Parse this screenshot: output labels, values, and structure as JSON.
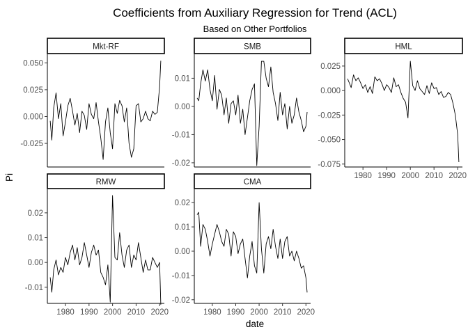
{
  "chart_data": {
    "type": "line",
    "title": "Coefficients from Auxiliary Regression for Trend (ACL)",
    "subtitle": "Based on Other Portfolios",
    "xlabel": "date",
    "ylabel": "Pi",
    "xlim": [
      1972.3,
      2022.0
    ],
    "x_ticks": [
      1980,
      1990,
      2000,
      2010,
      2020
    ],
    "legend": "none",
    "grid": false,
    "panels": [
      {
        "name": "Mkt-RF",
        "ylim": [
          -0.047,
          0.058
        ],
        "y_ticks": [
          0.05,
          0.025,
          0.0,
          -0.025
        ],
        "y_tick_labels": [
          "0.050",
          "0.025",
          "0.000",
          "-0.025"
        ],
        "x": [
          1973.5,
          1974.2,
          1975,
          1976,
          1977,
          1978,
          1979,
          1980,
          1981,
          1982,
          1983,
          1984,
          1985,
          1986,
          1987,
          1988,
          1989,
          1990,
          1991,
          1992,
          1993,
          1994,
          1995,
          1996,
          1997,
          1998,
          1999,
          2000,
          2001,
          2002,
          2003,
          2004,
          2005,
          2006,
          2007,
          2008,
          2009,
          2010,
          2011,
          2012,
          2013,
          2014,
          2015,
          2016,
          2017,
          2018,
          2019,
          2020,
          2020.5
        ],
        "values": [
          -0.004,
          -0.022,
          0.008,
          0.022,
          -0.002,
          0.012,
          -0.018,
          -0.005,
          0.01,
          0.017,
          0.005,
          -0.008,
          0.003,
          -0.015,
          0.005,
          0.001,
          -0.012,
          0.012,
          0.002,
          -0.002,
          0.013,
          -0.005,
          -0.02,
          -0.04,
          -0.005,
          0.008,
          -0.015,
          -0.03,
          0.012,
          0.003,
          0.015,
          0.01,
          -0.005,
          0.008,
          -0.025,
          -0.038,
          -0.03,
          0.01,
          0.012,
          -0.005,
          -0.002,
          0.005,
          -0.002,
          -0.004,
          0.005,
          0.002,
          0.004,
          0.028,
          0.052
        ]
      },
      {
        "name": "SMB",
        "ylim": [
          -0.0215,
          0.0185
        ],
        "y_ticks": [
          0.01,
          0.0,
          -0.01,
          -0.02
        ],
        "y_tick_labels": [
          "0.01",
          "0.00",
          "-0.01",
          "-0.02"
        ],
        "x": [
          1973.5,
          1974.2,
          1975,
          1976,
          1977,
          1978,
          1979,
          1980,
          1981,
          1982,
          1983,
          1984,
          1985,
          1986,
          1987,
          1988,
          1989,
          1990,
          1991,
          1992,
          1993,
          1994,
          1995,
          1996,
          1997,
          1998,
          1999,
          2000,
          2001,
          2002,
          2003,
          2004,
          2005,
          2006,
          2007,
          2008,
          2009,
          2010,
          2011,
          2012,
          2013,
          2014,
          2015,
          2016,
          2017,
          2018,
          2019,
          2020,
          2020.5
        ],
        "values": [
          0.003,
          0.002,
          0.008,
          0.013,
          0.009,
          0.013,
          0.006,
          0.002,
          0.011,
          -0.001,
          0.006,
          0.004,
          -0.003,
          0.003,
          -0.006,
          0.001,
          0.002,
          -0.003,
          0.004,
          -0.006,
          -0.001,
          -0.01,
          -0.004,
          0.002,
          0.006,
          0.008,
          -0.021,
          -0.007,
          0.016,
          0.016,
          0.01,
          0.007,
          0.014,
          0.005,
          0.001,
          -0.005,
          0.005,
          -0.003,
          0.001,
          -0.008,
          0.0,
          -0.006,
          -0.003,
          0.003,
          -0.002,
          -0.005,
          -0.009,
          -0.007,
          -0.002
        ]
      },
      {
        "name": "HML",
        "ylim": [
          -0.078,
          0.037
        ],
        "y_ticks": [
          0.025,
          0.0,
          -0.025,
          -0.05,
          -0.075
        ],
        "y_tick_labels": [
          "0.025",
          "0.000",
          "-0.025",
          "-0.050",
          "-0.075"
        ],
        "x": [
          1973.5,
          1974.2,
          1975,
          1976,
          1977,
          1978,
          1979,
          1980,
          1981,
          1982,
          1983,
          1984,
          1985,
          1986,
          1987,
          1988,
          1989,
          1990,
          1991,
          1992,
          1993,
          1994,
          1995,
          1996,
          1997,
          1998,
          1999,
          2000,
          2001,
          2002,
          2003,
          2004,
          2005,
          2006,
          2007,
          2008,
          2009,
          2010,
          2011,
          2012,
          2013,
          2014,
          2015,
          2016,
          2017,
          2018,
          2019,
          2020,
          2020.5
        ],
        "values": [
          0.012,
          0.008,
          0.003,
          0.016,
          0.01,
          0.013,
          0.008,
          0.002,
          0.006,
          -0.002,
          0.004,
          -0.003,
          0.014,
          0.01,
          0.012,
          0.007,
          0.0,
          0.006,
          0.003,
          -0.002,
          0.013,
          0.004,
          0.006,
          -0.002,
          -0.008,
          -0.012,
          -0.028,
          0.03,
          0.005,
          0.0,
          0.01,
          0.002,
          -0.001,
          -0.004,
          0.005,
          -0.003,
          0.008,
          0.002,
          0.003,
          -0.004,
          -0.001,
          -0.007,
          -0.006,
          -0.002,
          -0.004,
          -0.013,
          -0.025,
          -0.045,
          -0.073
        ]
      },
      {
        "name": "RMW",
        "ylim": [
          -0.0165,
          0.0295
        ],
        "y_ticks": [
          0.02,
          0.01,
          0.0,
          -0.01
        ],
        "y_tick_labels": [
          "0.02",
          "0.01",
          "0.00",
          "-0.01"
        ],
        "x": [
          1973.5,
          1974.2,
          1975,
          1976,
          1977,
          1978,
          1979,
          1980,
          1981,
          1982,
          1983,
          1984,
          1985,
          1986,
          1987,
          1988,
          1989,
          1990,
          1991,
          1992,
          1993,
          1994,
          1995,
          1996,
          1997,
          1998,
          1999,
          2000,
          2001,
          2002,
          2003,
          2004,
          2005,
          2006,
          2007,
          2008,
          2009,
          2010,
          2011,
          2012,
          2013,
          2014,
          2015,
          2016,
          2017,
          2018,
          2019,
          2020,
          2020.5
        ],
        "values": [
          -0.006,
          -0.012,
          -0.003,
          0.001,
          -0.005,
          -0.002,
          -0.004,
          0.002,
          -0.001,
          0.004,
          0.007,
          0.001,
          0.006,
          -0.001,
          0.002,
          0.008,
          0.003,
          -0.002,
          0.004,
          0.007,
          0.003,
          0.005,
          -0.004,
          -0.006,
          -0.009,
          -0.001,
          -0.016,
          0.027,
          0.002,
          0.001,
          0.012,
          0.003,
          -0.002,
          0.005,
          0.007,
          -0.002,
          0.003,
          0.001,
          0.008,
          0.002,
          -0.004,
          0.001,
          -0.003,
          -0.003,
          0.002,
          0.0,
          -0.002,
          0.0,
          -0.017
        ]
      },
      {
        "name": "CMA",
        "ylim": [
          -0.0215,
          0.0255
        ],
        "y_ticks": [
          0.02,
          0.01,
          0.0,
          -0.01,
          -0.02
        ],
        "y_tick_labels": [
          "0.02",
          "0.01",
          "0.00",
          "-0.01",
          "-0.02"
        ],
        "x": [
          1973.5,
          1974.2,
          1975,
          1976,
          1977,
          1978,
          1979,
          1980,
          1981,
          1982,
          1983,
          1984,
          1985,
          1986,
          1987,
          1988,
          1989,
          1990,
          1991,
          1992,
          1993,
          1994,
          1995,
          1996,
          1997,
          1998,
          1999,
          2000,
          2001,
          2002,
          2003,
          2004,
          2005,
          2006,
          2007,
          2008,
          2009,
          2010,
          2011,
          2012,
          2013,
          2014,
          2015,
          2016,
          2017,
          2018,
          2019,
          2020,
          2020.5
        ],
        "values": [
          0.015,
          0.016,
          0.002,
          0.011,
          0.009,
          0.004,
          -0.002,
          0.003,
          0.007,
          0.011,
          0.008,
          0.004,
          0.002,
          0.009,
          0.007,
          -0.002,
          0.008,
          0.006,
          -0.001,
          0.003,
          0.005,
          -0.003,
          -0.011,
          -0.002,
          0.004,
          -0.006,
          -0.009,
          0.02,
          0.001,
          -0.009,
          0.003,
          0.006,
          0.001,
          0.009,
          0.002,
          -0.003,
          0.005,
          -0.003,
          0.004,
          0.006,
          -0.002,
          0.0,
          -0.004,
          0.0,
          -0.003,
          -0.007,
          -0.006,
          -0.011,
          -0.017
        ]
      }
    ]
  }
}
